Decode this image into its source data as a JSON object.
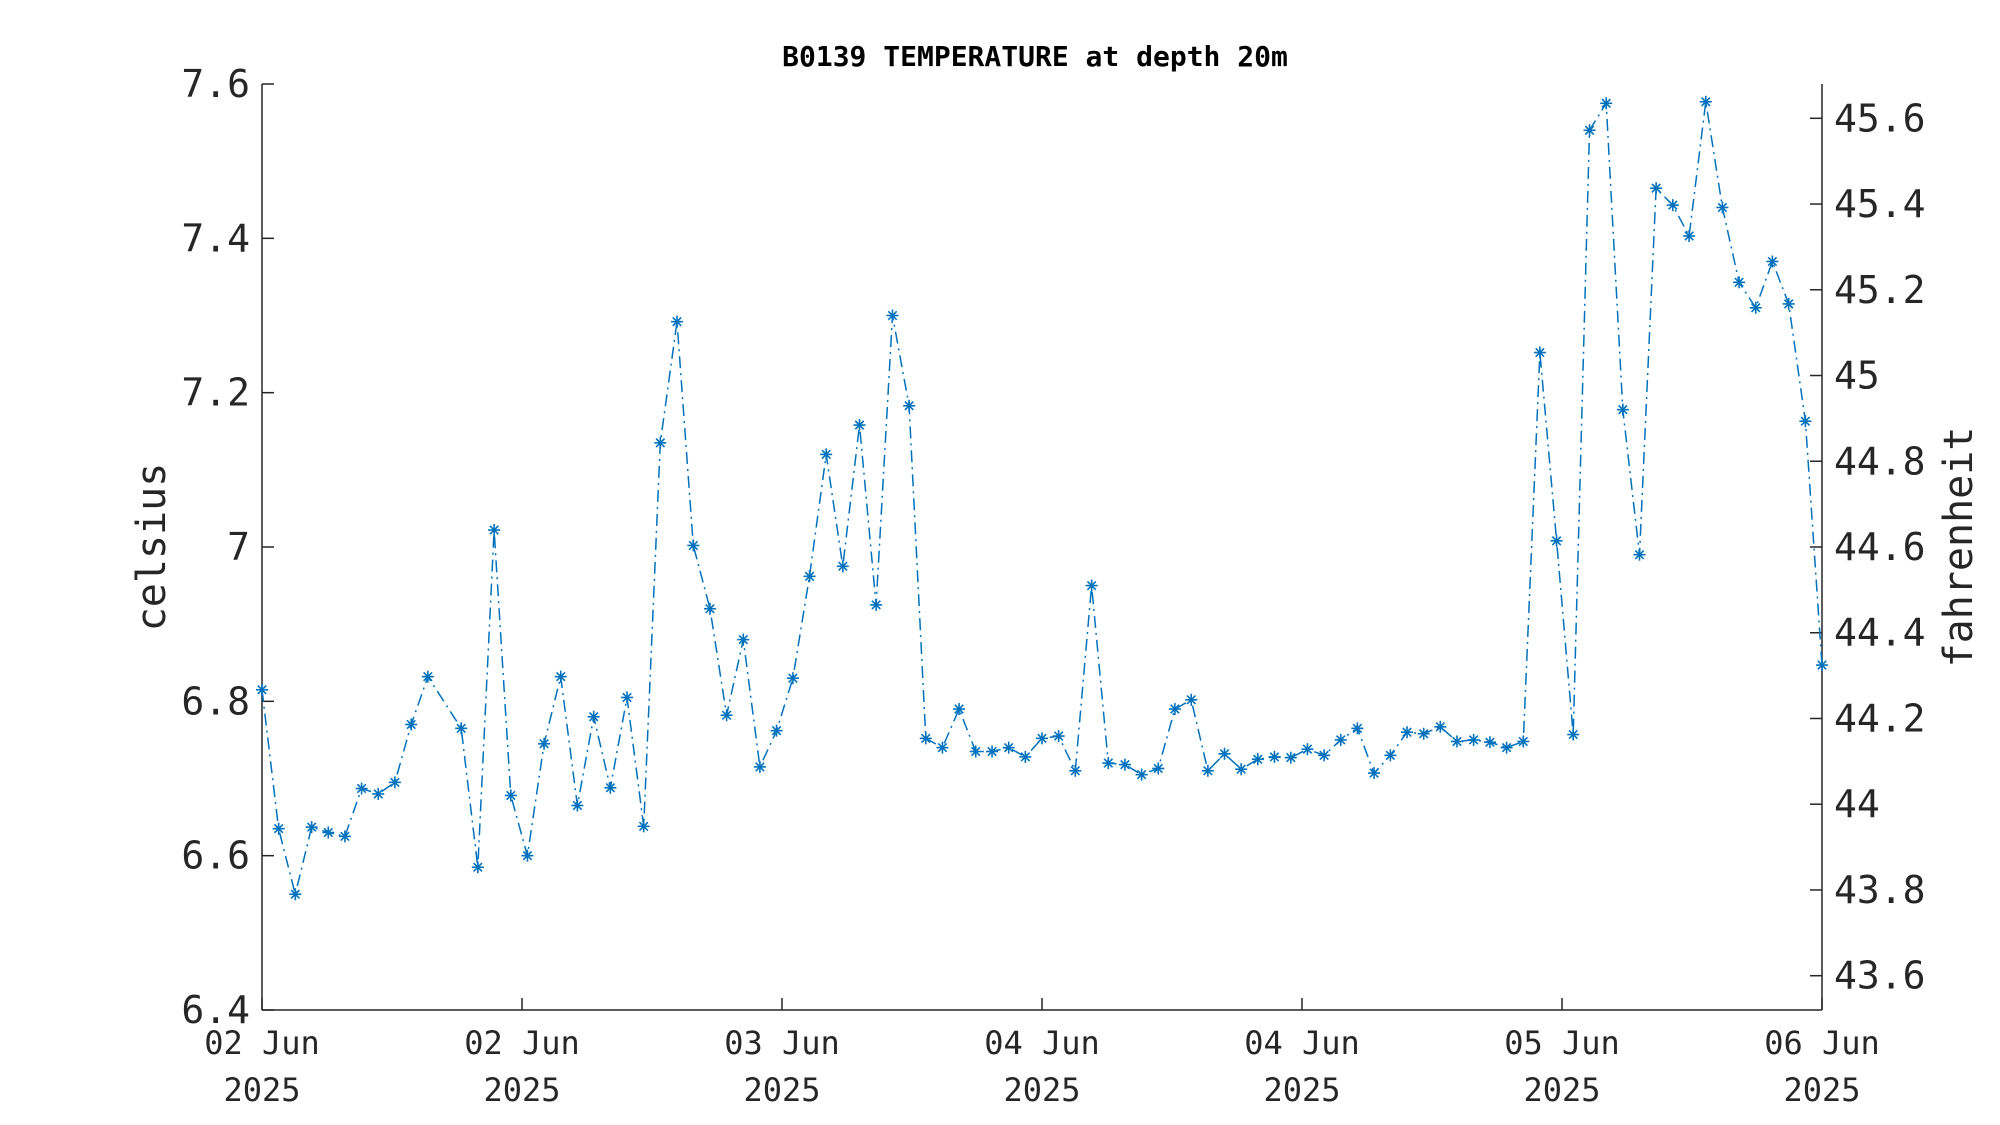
{
  "chart_data": {
    "type": "line",
    "title": "B0139 TEMPERATURE at depth 20m",
    "ylabel": "celsius",
    "ylabel_right": "fahrenheit",
    "ylim": [
      6.4,
      7.6
    ],
    "ylim_right": [
      43.52,
      45.68
    ],
    "yticks": [
      "6.4",
      "6.6",
      "6.8",
      "7",
      "7.2",
      "7.4",
      "7.6"
    ],
    "yticks_right": [
      "43.6",
      "43.8",
      "44",
      "44.2",
      "44.4",
      "44.6",
      "44.8",
      "45",
      "45.2",
      "45.4",
      "45.6"
    ],
    "xticks": [
      {
        "line1": "02 Jun",
        "line2": "2025"
      },
      {
        "line1": "02 Jun",
        "line2": "2025"
      },
      {
        "line1": "03 Jun",
        "line2": "2025"
      },
      {
        "line1": "04 Jun",
        "line2": "2025"
      },
      {
        "line1": "04 Jun",
        "line2": "2025"
      },
      {
        "line1": "05 Jun",
        "line2": "2025"
      },
      {
        "line1": "06 Jun",
        "line2": "2025"
      }
    ],
    "grid": false,
    "series": [
      {
        "color": "#0072BD",
        "line_style": "dash-dot",
        "marker": "asterisk",
        "points": [
          [
            0.0,
            6.815
          ],
          [
            0.53,
            6.635
          ],
          [
            1.06,
            6.55
          ],
          [
            1.58,
            6.637
          ],
          [
            2.11,
            6.63
          ],
          [
            2.64,
            6.625
          ],
          [
            3.17,
            6.687
          ],
          [
            3.7,
            6.68
          ],
          [
            4.23,
            6.695
          ],
          [
            4.75,
            6.77
          ],
          [
            5.28,
            6.832
          ],
          [
            6.34,
            6.765
          ],
          [
            6.87,
            6.585
          ],
          [
            7.39,
            7.022
          ],
          [
            7.92,
            6.678
          ],
          [
            8.45,
            6.6
          ],
          [
            8.98,
            6.745
          ],
          [
            9.51,
            6.832
          ],
          [
            10.04,
            6.665
          ],
          [
            10.56,
            6.78
          ],
          [
            11.09,
            6.688
          ],
          [
            11.62,
            6.805
          ],
          [
            12.15,
            6.638
          ],
          [
            12.68,
            7.135
          ],
          [
            13.21,
            7.292
          ],
          [
            13.73,
            7.002
          ],
          [
            14.26,
            6.92
          ],
          [
            14.79,
            6.782
          ],
          [
            15.32,
            6.88
          ],
          [
            15.85,
            6.715
          ],
          [
            16.38,
            6.762
          ],
          [
            16.9,
            6.83
          ],
          [
            17.43,
            6.962
          ],
          [
            17.96,
            7.12
          ],
          [
            18.49,
            6.975
          ],
          [
            19.02,
            7.158
          ],
          [
            19.55,
            6.925
          ],
          [
            20.07,
            7.3
          ],
          [
            20.6,
            7.183
          ],
          [
            21.13,
            6.752
          ],
          [
            21.66,
            6.74
          ],
          [
            22.19,
            6.79
          ],
          [
            22.72,
            6.735
          ],
          [
            23.24,
            6.735
          ],
          [
            23.77,
            6.74
          ],
          [
            24.3,
            6.728
          ],
          [
            24.83,
            6.752
          ],
          [
            25.36,
            6.755
          ],
          [
            25.89,
            6.71
          ],
          [
            26.41,
            6.95
          ],
          [
            26.94,
            6.72
          ],
          [
            27.47,
            6.718
          ],
          [
            28.0,
            6.705
          ],
          [
            28.53,
            6.713
          ],
          [
            29.06,
            6.79
          ],
          [
            29.58,
            6.802
          ],
          [
            30.11,
            6.71
          ],
          [
            30.64,
            6.732
          ],
          [
            31.17,
            6.712
          ],
          [
            31.7,
            6.725
          ],
          [
            32.23,
            6.728
          ],
          [
            32.75,
            6.727
          ],
          [
            33.28,
            6.738
          ],
          [
            33.81,
            6.73
          ],
          [
            34.34,
            6.75
          ],
          [
            34.87,
            6.765
          ],
          [
            35.4,
            6.707
          ],
          [
            35.92,
            6.73
          ],
          [
            36.45,
            6.76
          ],
          [
            36.98,
            6.758
          ],
          [
            37.51,
            6.767
          ],
          [
            38.04,
            6.748
          ],
          [
            38.57,
            6.75
          ],
          [
            39.09,
            6.747
          ],
          [
            39.62,
            6.74
          ],
          [
            40.15,
            6.748
          ],
          [
            40.68,
            7.252
          ],
          [
            41.21,
            7.008
          ],
          [
            41.74,
            6.757
          ],
          [
            42.26,
            7.54
          ],
          [
            42.79,
            7.575
          ],
          [
            43.32,
            7.178
          ],
          [
            43.85,
            6.99
          ],
          [
            44.38,
            7.465
          ],
          [
            44.91,
            7.443
          ],
          [
            45.43,
            7.403
          ],
          [
            45.96,
            7.577
          ],
          [
            46.49,
            7.44
          ],
          [
            47.02,
            7.343
          ],
          [
            47.55,
            7.31
          ],
          [
            48.08,
            7.37
          ],
          [
            48.6,
            7.315
          ],
          [
            49.13,
            7.163
          ],
          [
            49.66,
            6.847
          ]
        ]
      }
    ],
    "x_range_hours": [
      0,
      49.66
    ]
  }
}
